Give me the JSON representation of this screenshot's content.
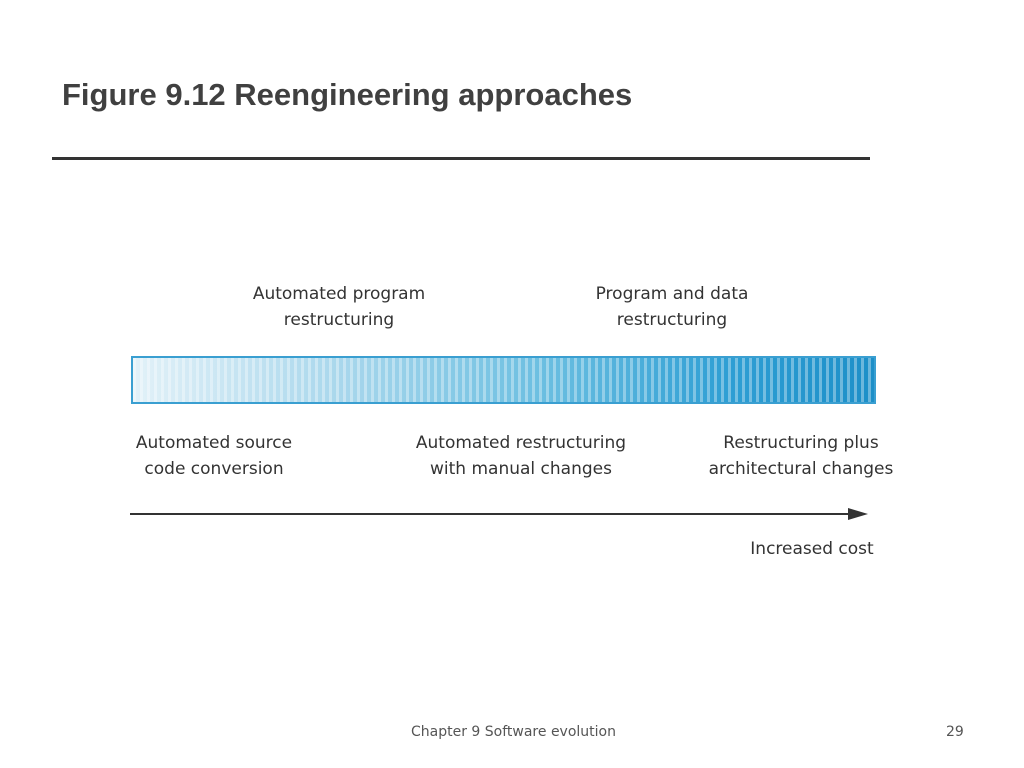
{
  "slide": {
    "title": "Figure 9.12 Reengineering approaches",
    "footer": "Chapter 9 Software evolution",
    "page_number": "29"
  },
  "diagram": {
    "top_labels": [
      "Automated program\nrestructuring",
      "Program and data\nrestructuring"
    ],
    "bottom_labels": [
      "Automated source\ncode conversion",
      "Automated restructuring\nwith manual changes",
      "Restructuring plus\narchitectural changes"
    ],
    "axis_label": "Increased cost"
  },
  "colors": {
    "gradient_start": "#e2f1f8",
    "gradient_end": "#1d8fc8",
    "bar_border": "#3a9fd1",
    "title_text": "#404040"
  }
}
